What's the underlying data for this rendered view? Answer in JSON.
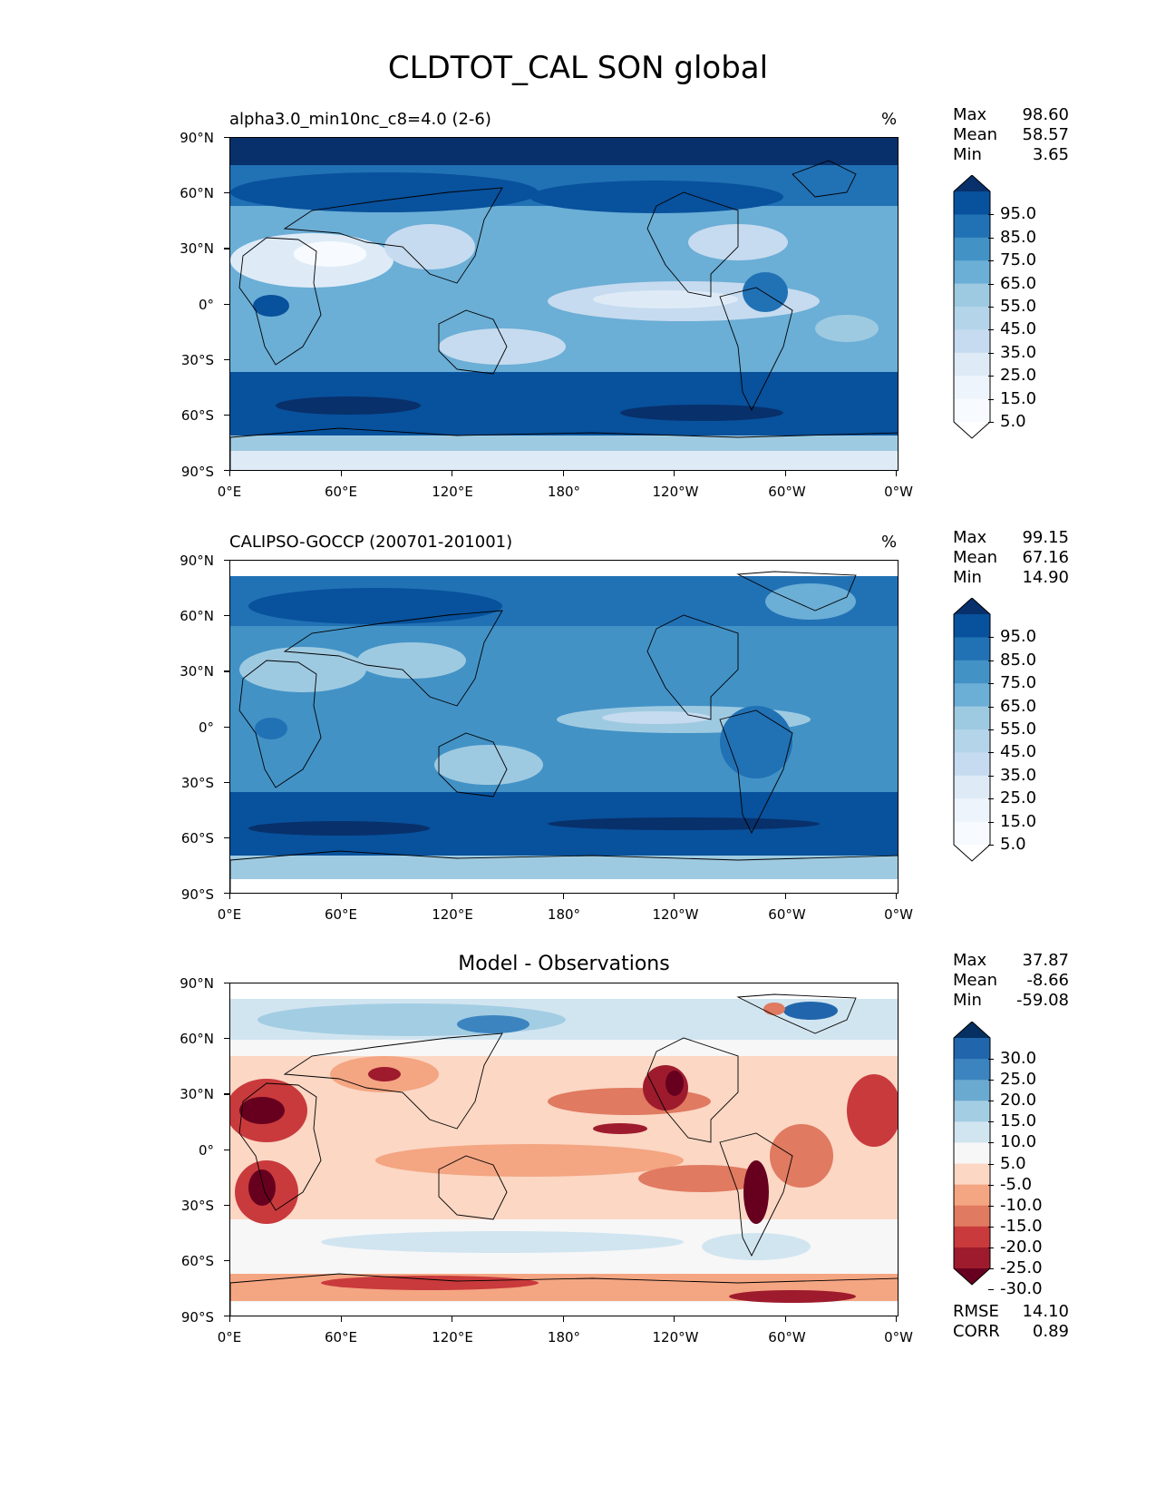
{
  "title": "CLDTOT_CAL SON global",
  "axes": {
    "y_labels": [
      "90°N",
      "60°N",
      "30°N",
      "0°",
      "30°S",
      "60°S",
      "90°S"
    ],
    "x_labels": [
      "0°E",
      "60°E",
      "120°E",
      "180°",
      "120°W",
      "60°W",
      "0°W"
    ]
  },
  "panels": [
    {
      "title_left": "alpha3.0_min10nc_c8=4.0 (2-6)",
      "title_right": "%",
      "stats": [
        {
          "label": "Max",
          "value": "98.60"
        },
        {
          "label": "Mean",
          "value": "58.57"
        },
        {
          "label": "Min",
          "value": "3.65"
        }
      ],
      "colorbar": {
        "labels": [
          "95.0",
          "85.0",
          "75.0",
          "65.0",
          "55.0",
          "45.0",
          "35.0",
          "25.0",
          "15.0",
          "5.0"
        ],
        "colors": [
          "#08306b",
          "#08519c",
          "#2171b5",
          "#4292c6",
          "#6baed6",
          "#9ecae1",
          "#b4d4ea",
          "#c6dbef",
          "#deebf7",
          "#edf4fb",
          "#f7fbff",
          "#ffffff"
        ]
      }
    },
    {
      "title_left": "CALIPSO-GOCCP (200701-201001)",
      "title_right": "%",
      "stats": [
        {
          "label": "Max",
          "value": "99.15"
        },
        {
          "label": "Mean",
          "value": "67.16"
        },
        {
          "label": "Min",
          "value": "14.90"
        }
      ],
      "colorbar": {
        "labels": [
          "95.0",
          "85.0",
          "75.0",
          "65.0",
          "55.0",
          "45.0",
          "35.0",
          "25.0",
          "15.0",
          "5.0"
        ],
        "colors": [
          "#08306b",
          "#08519c",
          "#2171b5",
          "#4292c6",
          "#6baed6",
          "#9ecae1",
          "#b4d4ea",
          "#c6dbef",
          "#deebf7",
          "#edf4fb",
          "#f7fbff",
          "#ffffff"
        ]
      }
    },
    {
      "title_center": "Model - Observations",
      "stats": [
        {
          "label": "Max",
          "value": "37.87"
        },
        {
          "label": "Mean",
          "value": "-8.66"
        },
        {
          "label": "Min",
          "value": "-59.08"
        }
      ],
      "colorbar": {
        "labels": [
          "30.0",
          "25.0",
          "20.0",
          "15.0",
          "10.0",
          "5.0",
          "-5.0",
          "-10.0",
          "-15.0",
          "-20.0",
          "-25.0",
          "-30.0"
        ],
        "colors": [
          "#053061",
          "#2166ac",
          "#3b84bf",
          "#6aa9d0",
          "#a3cde3",
          "#d1e5f0",
          "#f7f7f7",
          "#fbd7c4",
          "#f4a582",
          "#e07a60",
          "#c93a3c",
          "#9e1b2d",
          "#67001f"
        ]
      },
      "metrics": [
        {
          "label": "RMSE",
          "value": "14.10"
        },
        {
          "label": "CORR",
          "value": "0.89"
        }
      ]
    }
  ]
}
